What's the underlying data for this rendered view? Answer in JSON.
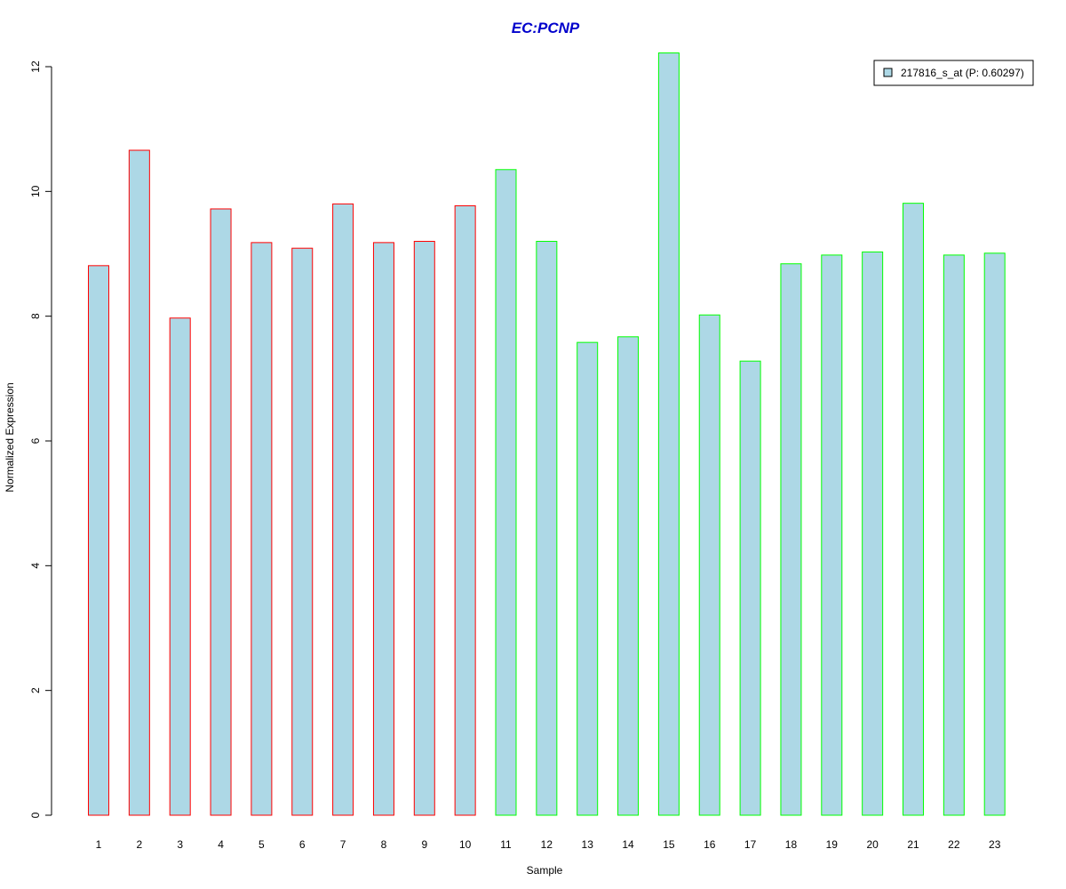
{
  "chart_data": {
    "type": "bar",
    "title": "EC:PCNP",
    "xlabel": "Sample",
    "ylabel": "Normalized Expression",
    "ylim": [
      0,
      12
    ],
    "yticks": [
      0,
      2,
      4,
      6,
      8,
      10,
      12
    ],
    "grid": false,
    "legend_position": "top-right",
    "categories": [
      "1",
      "2",
      "3",
      "4",
      "5",
      "6",
      "7",
      "8",
      "9",
      "10",
      "11",
      "12",
      "13",
      "14",
      "15",
      "16",
      "17",
      "18",
      "19",
      "20",
      "21",
      "22",
      "23"
    ],
    "series": [
      {
        "name": "217816_s_at (P: 0.60297)",
        "values": [
          8.81,
          10.66,
          7.97,
          9.72,
          9.18,
          9.09,
          9.8,
          9.18,
          9.2,
          9.77,
          10.35,
          9.2,
          7.58,
          7.67,
          12.22,
          8.02,
          7.28,
          8.84,
          8.98,
          9.03,
          9.81,
          8.98,
          9.01
        ]
      }
    ],
    "groups": [
      1,
      1,
      1,
      1,
      1,
      1,
      1,
      1,
      1,
      1,
      2,
      2,
      2,
      2,
      2,
      2,
      2,
      2,
      2,
      2,
      2,
      2,
      2
    ],
    "colors": {
      "fill": "#add8e6",
      "group1_border": "#ff0000",
      "group2_border": "#00ff00",
      "title": "#0000cc",
      "axis": "#000000"
    }
  }
}
